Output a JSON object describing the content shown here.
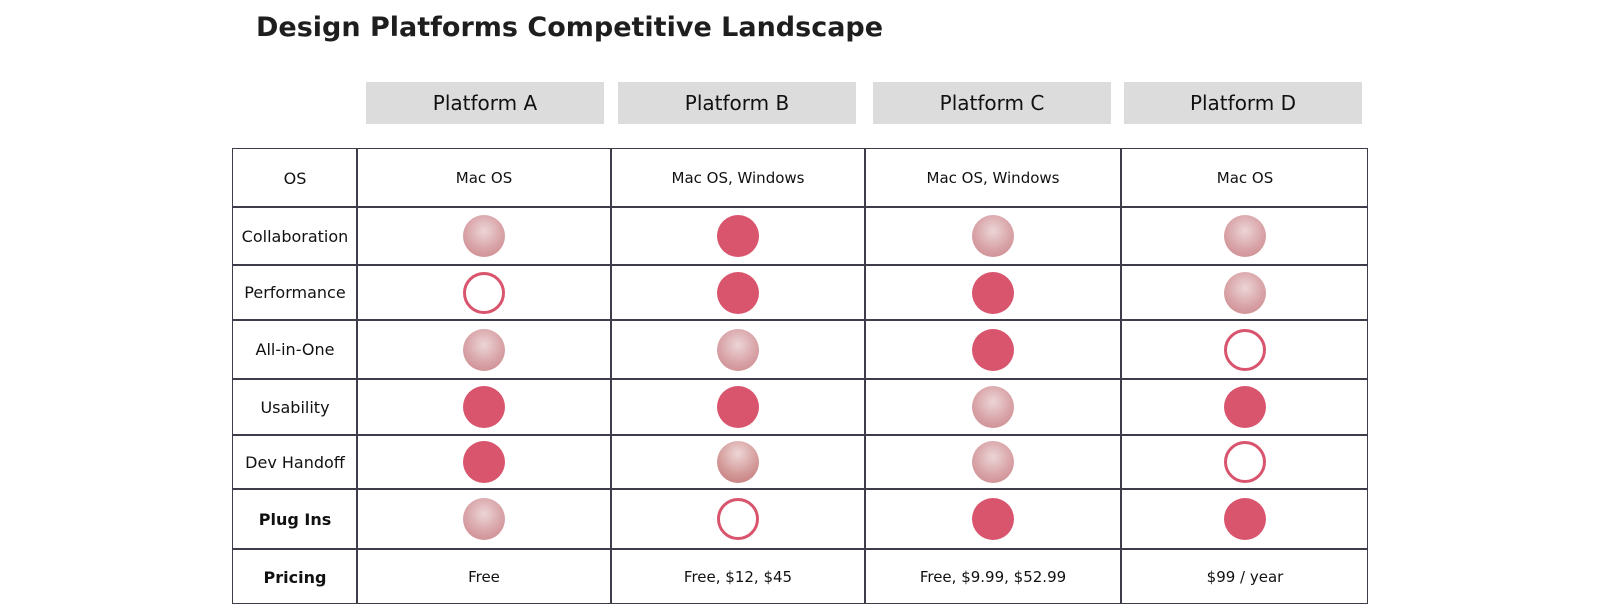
{
  "title": "Design Platforms Competitive Landscape",
  "platforms": [
    "Platform A",
    "Platform B",
    "Platform C",
    "Platform D"
  ],
  "colors": {
    "full": "#d9546d",
    "partial": "#d8a3a7",
    "header_bg": "#dcdcdd",
    "grid_line": "#3d3d4a"
  },
  "rows": [
    {
      "label": "OS",
      "bold": false,
      "kind": "text",
      "values": [
        "Mac OS",
        "Mac OS, Windows",
        "Mac OS, Windows",
        "Mac OS"
      ]
    },
    {
      "label": "Collaboration",
      "bold": false,
      "kind": "rating",
      "values": [
        "partial",
        "full",
        "partial",
        "partial"
      ]
    },
    {
      "label": "Performance",
      "bold": false,
      "kind": "rating",
      "values": [
        "none",
        "full",
        "full",
        "partial"
      ]
    },
    {
      "label": "All-in-One",
      "bold": false,
      "kind": "rating",
      "values": [
        "partial",
        "partial",
        "full",
        "none"
      ]
    },
    {
      "label": "Usability",
      "bold": false,
      "kind": "rating",
      "values": [
        "full",
        "full",
        "partial",
        "full"
      ]
    },
    {
      "label": "Dev Handoff",
      "bold": false,
      "kind": "rating",
      "values": [
        "full",
        "low",
        "partial",
        "none"
      ]
    },
    {
      "label": "Plug Ins",
      "bold": true,
      "kind": "rating",
      "values": [
        "partial",
        "none",
        "full",
        "full"
      ]
    },
    {
      "label": "Pricing",
      "bold": true,
      "kind": "text",
      "values": [
        "Free",
        "Free, $12, $45",
        "Free, $9.99, $52.99",
        "$99 / year"
      ]
    }
  ]
}
